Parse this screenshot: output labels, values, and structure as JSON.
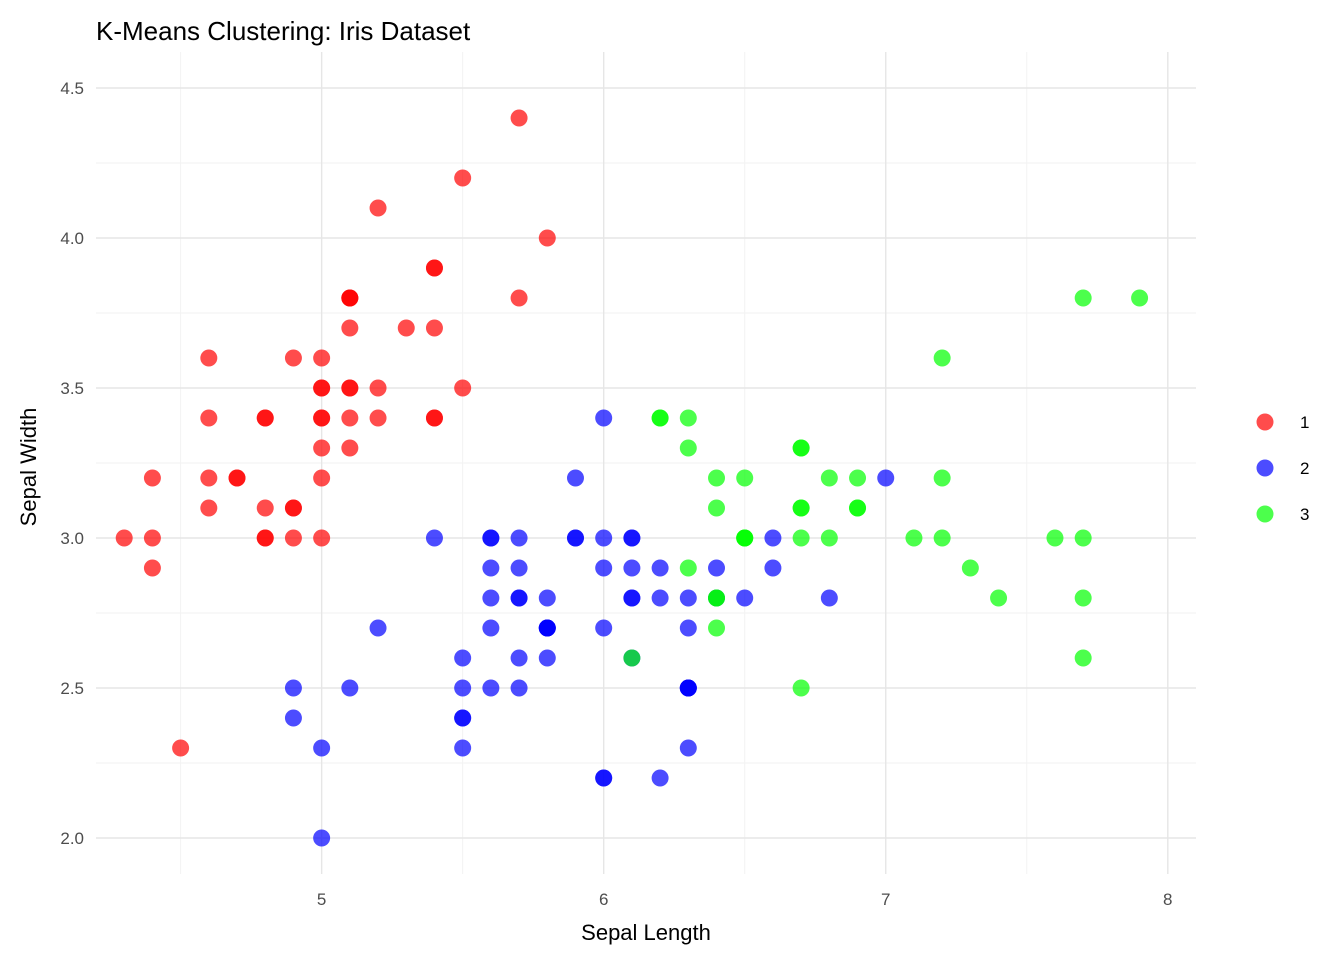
{
  "chart_data": {
    "type": "scatter",
    "title": "K-Means Clustering: Iris Dataset",
    "xlabel": "Sepal Length",
    "ylabel": "Sepal Width",
    "xlim": [
      4.2,
      8.1
    ],
    "ylim": [
      1.88,
      4.62
    ],
    "x_ticks": [
      5,
      6,
      7,
      8
    ],
    "y_ticks": [
      2.0,
      2.5,
      3.0,
      3.5,
      4.0,
      4.5
    ],
    "x_tick_labels": [
      "5",
      "6",
      "7",
      "8"
    ],
    "y_tick_labels": [
      "2.0",
      "2.5",
      "3.0",
      "3.5",
      "4.0",
      "4.5"
    ],
    "grid": true,
    "legend_position": "right",
    "series": [
      {
        "name": "1",
        "color": "#ff0000",
        "points": [
          [
            5.1,
            3.5
          ],
          [
            4.9,
            3.0
          ],
          [
            4.7,
            3.2
          ],
          [
            4.6,
            3.1
          ],
          [
            5.0,
            3.6
          ],
          [
            5.4,
            3.9
          ],
          [
            4.6,
            3.4
          ],
          [
            5.0,
            3.4
          ],
          [
            4.4,
            2.9
          ],
          [
            4.9,
            3.1
          ],
          [
            5.4,
            3.7
          ],
          [
            4.8,
            3.4
          ],
          [
            4.8,
            3.0
          ],
          [
            4.3,
            3.0
          ],
          [
            5.8,
            4.0
          ],
          [
            5.7,
            4.4
          ],
          [
            5.4,
            3.9
          ],
          [
            5.1,
            3.5
          ],
          [
            5.7,
            3.8
          ],
          [
            5.1,
            3.8
          ],
          [
            5.4,
            3.4
          ],
          [
            5.1,
            3.7
          ],
          [
            4.6,
            3.6
          ],
          [
            5.1,
            3.3
          ],
          [
            4.8,
            3.4
          ],
          [
            5.0,
            3.0
          ],
          [
            5.0,
            3.4
          ],
          [
            5.2,
            3.5
          ],
          [
            5.2,
            3.4
          ],
          [
            4.7,
            3.2
          ],
          [
            4.8,
            3.1
          ],
          [
            5.4,
            3.4
          ],
          [
            5.2,
            4.1
          ],
          [
            5.5,
            4.2
          ],
          [
            4.9,
            3.1
          ],
          [
            5.0,
            3.2
          ],
          [
            5.5,
            3.5
          ],
          [
            4.9,
            3.6
          ],
          [
            4.4,
            3.0
          ],
          [
            5.1,
            3.4
          ],
          [
            5.0,
            3.5
          ],
          [
            4.5,
            2.3
          ],
          [
            4.4,
            3.2
          ],
          [
            5.0,
            3.5
          ],
          [
            5.1,
            3.8
          ],
          [
            4.8,
            3.0
          ],
          [
            5.1,
            3.8
          ],
          [
            4.6,
            3.2
          ],
          [
            5.3,
            3.7
          ],
          [
            5.0,
            3.3
          ]
        ]
      },
      {
        "name": "2",
        "color": "#0000ff",
        "points": [
          [
            5.5,
            2.3
          ],
          [
            5.7,
            2.8
          ],
          [
            4.9,
            2.4
          ],
          [
            6.6,
            2.9
          ],
          [
            5.2,
            2.7
          ],
          [
            5.0,
            2.0
          ],
          [
            5.9,
            3.0
          ],
          [
            6.0,
            2.2
          ],
          [
            6.1,
            2.9
          ],
          [
            5.6,
            2.9
          ],
          [
            5.6,
            3.0
          ],
          [
            5.8,
            2.7
          ],
          [
            6.2,
            2.2
          ],
          [
            5.6,
            2.5
          ],
          [
            5.9,
            3.2
          ],
          [
            6.1,
            2.8
          ],
          [
            6.3,
            2.5
          ],
          [
            6.1,
            2.8
          ],
          [
            6.4,
            2.9
          ],
          [
            6.6,
            3.0
          ],
          [
            6.0,
            2.9
          ],
          [
            5.7,
            2.6
          ],
          [
            5.5,
            2.4
          ],
          [
            5.5,
            2.4
          ],
          [
            5.8,
            2.7
          ],
          [
            6.0,
            2.7
          ],
          [
            5.4,
            3.0
          ],
          [
            6.0,
            3.4
          ],
          [
            6.3,
            2.3
          ],
          [
            5.6,
            3.0
          ],
          [
            5.5,
            2.5
          ],
          [
            5.5,
            2.6
          ],
          [
            6.1,
            3.0
          ],
          [
            5.8,
            2.6
          ],
          [
            5.0,
            2.3
          ],
          [
            5.6,
            2.7
          ],
          [
            5.7,
            3.0
          ],
          [
            5.7,
            2.9
          ],
          [
            6.2,
            2.9
          ],
          [
            5.1,
            2.5
          ],
          [
            5.7,
            2.8
          ],
          [
            5.8,
            2.7
          ],
          [
            4.9,
            2.5
          ],
          [
            5.7,
            2.5
          ],
          [
            5.8,
            2.8
          ],
          [
            6.0,
            2.2
          ],
          [
            5.6,
            2.8
          ],
          [
            6.3,
            2.7
          ],
          [
            6.2,
            2.8
          ],
          [
            6.1,
            3.0
          ],
          [
            6.3,
            2.8
          ],
          [
            6.1,
            2.6
          ],
          [
            6.3,
            2.5
          ],
          [
            6.0,
            3.0
          ],
          [
            5.8,
            2.7
          ],
          [
            6.3,
            2.5
          ],
          [
            5.9,
            3.0
          ],
          [
            7.0,
            3.2
          ],
          [
            6.5,
            2.8
          ],
          [
            6.8,
            2.8
          ],
          [
            6.4,
            2.8
          ],
          [
            6.3,
            2.5
          ]
        ]
      },
      {
        "name": "3",
        "color": "#00ff00",
        "points": [
          [
            6.3,
            3.3
          ],
          [
            7.1,
            3.0
          ],
          [
            6.5,
            3.0
          ],
          [
            7.6,
            3.0
          ],
          [
            7.3,
            2.9
          ],
          [
            6.7,
            2.5
          ],
          [
            7.2,
            3.6
          ],
          [
            6.5,
            3.2
          ],
          [
            6.4,
            2.7
          ],
          [
            6.8,
            3.0
          ],
          [
            6.4,
            3.2
          ],
          [
            6.5,
            3.0
          ],
          [
            7.7,
            3.8
          ],
          [
            7.7,
            2.6
          ],
          [
            6.9,
            3.2
          ],
          [
            7.7,
            2.8
          ],
          [
            6.7,
            3.3
          ],
          [
            7.2,
            3.2
          ],
          [
            6.2,
            3.4
          ],
          [
            6.1,
            2.6
          ],
          [
            6.4,
            2.8
          ],
          [
            7.2,
            3.0
          ],
          [
            7.4,
            2.8
          ],
          [
            7.9,
            3.8
          ],
          [
            6.4,
            2.8
          ],
          [
            7.7,
            3.0
          ],
          [
            6.3,
            3.4
          ],
          [
            6.4,
            3.1
          ],
          [
            6.9,
            3.1
          ],
          [
            6.7,
            3.1
          ],
          [
            6.9,
            3.1
          ],
          [
            6.8,
            3.2
          ],
          [
            6.7,
            3.3
          ],
          [
            6.7,
            3.0
          ],
          [
            6.5,
            3.0
          ],
          [
            6.2,
            3.4
          ],
          [
            6.7,
            3.1
          ],
          [
            6.3,
            2.9
          ]
        ]
      }
    ]
  }
}
